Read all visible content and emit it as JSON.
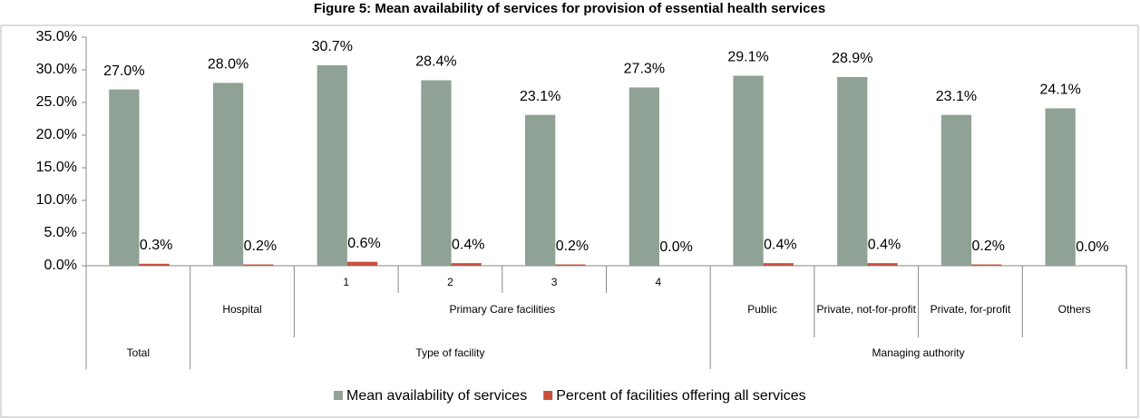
{
  "chart_data": {
    "type": "bar",
    "title": "Figure 5: Mean availability of services for provision of essential health services",
    "categories": [
      "Total",
      "Hospital",
      "1",
      "2",
      "3",
      "4",
      "Public",
      "Private, not-for-profit",
      "Private, for-profit",
      "Others"
    ],
    "category_groups": [
      {
        "label": "Primary Care facilities",
        "start": 2,
        "end": 5
      }
    ],
    "category_supergroups": [
      {
        "label": "Type of facility",
        "start": 1,
        "end": 5
      },
      {
        "label": "Managing authority",
        "start": 6,
        "end": 9
      }
    ],
    "series": [
      {
        "name": "Mean availability of services",
        "color": "#8fa295",
        "values": [
          27.0,
          28.0,
          30.7,
          28.4,
          23.1,
          27.3,
          29.1,
          28.9,
          23.1,
          24.1
        ],
        "value_labels": [
          "27.0%",
          "28.0%",
          "30.7%",
          "28.4%",
          "23.1%",
          "27.3%",
          "29.1%",
          "28.9%",
          "23.1%",
          "24.1%"
        ]
      },
      {
        "name": "Percent of facilities offering all services",
        "color": "#c9503d",
        "values": [
          0.3,
          0.2,
          0.6,
          0.4,
          0.2,
          0.0,
          0.4,
          0.4,
          0.2,
          0.0
        ],
        "value_labels": [
          "0.3%",
          "0.2%",
          "0.6%",
          "0.4%",
          "0.2%",
          "0.0%",
          "0.4%",
          "0.4%",
          "0.2%",
          "0.0%"
        ]
      }
    ],
    "ylim": [
      0,
      35
    ],
    "yticks": [
      {
        "value": 0,
        "label": "0.0%"
      },
      {
        "value": 5,
        "label": "5.0%"
      },
      {
        "value": 10,
        "label": "10.0%"
      },
      {
        "value": 15,
        "label": "15.0%"
      },
      {
        "value": 20,
        "label": "20.0%"
      },
      {
        "value": 25,
        "label": "25.0%"
      },
      {
        "value": 30,
        "label": "30.0%"
      },
      {
        "value": 35,
        "label": "35.0%"
      }
    ],
    "legend": "bottom"
  }
}
